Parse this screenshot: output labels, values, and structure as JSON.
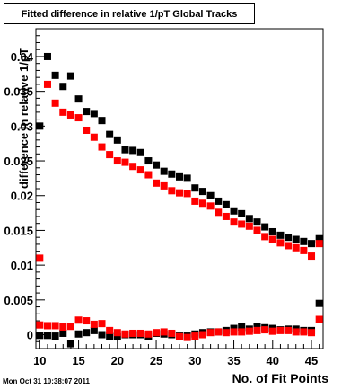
{
  "title": "Fitted difference in relative 1/pT  Global Tracks",
  "timestamp": "Mon Oct 31 10:38:07 2011",
  "chart_data": {
    "type": "scatter",
    "title": "Fitted difference in relative 1/pT  Global Tracks",
    "xlabel": "No. of Fit Points",
    "ylabel": "difference in relative 1/pT",
    "xlim": [
      9.5,
      46.5
    ],
    "ylim": [
      -0.002,
      0.044
    ],
    "x_ticks": [
      10,
      15,
      20,
      25,
      30,
      35,
      40,
      45
    ],
    "x_tick_labels": [
      "10",
      "15",
      "20",
      "25",
      "30",
      "35",
      "40",
      "45"
    ],
    "y_ticks": [
      0,
      0.005,
      0.01,
      0.015,
      0.02,
      0.025,
      0.03,
      0.035,
      0.04
    ],
    "y_tick_labels": [
      "0",
      "0.005",
      "0.01",
      "0.015",
      "0.02",
      "0.025",
      "0.03",
      "0.035",
      "0.04"
    ],
    "grid": false,
    "legend": "none",
    "series": [
      {
        "color": "#000000",
        "x": [
          10,
          11,
          12,
          13,
          14,
          15,
          16,
          17,
          18,
          19,
          20,
          21,
          22,
          23,
          24,
          25,
          26,
          27,
          28,
          29,
          30,
          31,
          32,
          33,
          34,
          35,
          36,
          37,
          38,
          39,
          40,
          41,
          42,
          43,
          44,
          45,
          46
        ],
        "y": [
          0.03,
          0.04,
          0.0373,
          0.0357,
          0.0372,
          0.0339,
          0.0321,
          0.0318,
          0.0308,
          0.0288,
          0.028,
          0.0266,
          0.0265,
          0.0262,
          0.025,
          0.0244,
          0.0235,
          0.0231,
          0.0227,
          0.0225,
          0.0211,
          0.0206,
          0.02,
          0.0192,
          0.0187,
          0.0178,
          0.0174,
          0.0167,
          0.0162,
          0.0155,
          0.0148,
          0.0143,
          0.014,
          0.0137,
          0.0134,
          0.0131,
          0.0138
        ]
      },
      {
        "color": "#ff0000",
        "x": [
          10,
          11,
          12,
          13,
          14,
          15,
          16,
          17,
          18,
          19,
          20,
          21,
          22,
          23,
          24,
          25,
          26,
          27,
          28,
          29,
          30,
          31,
          32,
          33,
          34,
          35,
          36,
          37,
          38,
          39,
          40,
          41,
          42,
          43,
          44,
          45,
          46
        ],
        "y": [
          0.011,
          0.036,
          0.0333,
          0.032,
          0.0316,
          0.0312,
          0.0294,
          0.0284,
          0.027,
          0.0259,
          0.025,
          0.0248,
          0.0242,
          0.0237,
          0.023,
          0.0218,
          0.0214,
          0.0207,
          0.0204,
          0.0203,
          0.0192,
          0.0189,
          0.0185,
          0.0176,
          0.017,
          0.0162,
          0.0159,
          0.0156,
          0.015,
          0.0141,
          0.0137,
          0.0132,
          0.0128,
          0.0125,
          0.0121,
          0.0113,
          0.0131
        ]
      },
      {
        "color": "#000000",
        "x": [
          10,
          11,
          12,
          13,
          14,
          15,
          16,
          17,
          18,
          19,
          20,
          21,
          22,
          23,
          24,
          25,
          26,
          27,
          28,
          29,
          30,
          31,
          32,
          33,
          34,
          35,
          36,
          37,
          38,
          39,
          40,
          41,
          42,
          43,
          44,
          45,
          46
        ],
        "y": [
          -0.0001,
          -0.0001,
          -0.0002,
          0.0002,
          -0.0013,
          0.0001,
          0.0003,
          0.0006,
          0.0,
          -0.0002,
          -0.0003,
          0.0,
          0.0,
          0.0,
          -0.0003,
          0.0002,
          0.0001,
          0.0,
          -0.0002,
          -0.0002,
          0.0001,
          0.0003,
          0.0004,
          0.0004,
          0.0006,
          0.0009,
          0.0011,
          0.0008,
          0.0011,
          0.001,
          0.0009,
          0.0007,
          0.0008,
          0.0008,
          0.0006,
          0.0006,
          0.0045
        ]
      },
      {
        "color": "#ff0000",
        "x": [
          10,
          11,
          12,
          13,
          14,
          15,
          16,
          17,
          18,
          19,
          20,
          21,
          22,
          23,
          24,
          25,
          26,
          27,
          28,
          29,
          30,
          31,
          32,
          33,
          34,
          35,
          36,
          37,
          38,
          39,
          40,
          41,
          42,
          43,
          44,
          45,
          46
        ],
        "y": [
          0.0014,
          0.0013,
          0.0013,
          0.0011,
          0.0012,
          0.0021,
          0.002,
          0.0015,
          0.0016,
          0.0006,
          0.0003,
          0.0001,
          0.0002,
          0.0002,
          0.0001,
          0.0003,
          0.0004,
          0.0002,
          -0.0003,
          -0.0004,
          -0.0002,
          0.0,
          0.0003,
          0.0004,
          0.0003,
          0.0004,
          0.0004,
          0.0005,
          0.0006,
          0.0007,
          0.0005,
          0.0006,
          0.0006,
          0.0004,
          0.0004,
          0.0003,
          0.0022
        ]
      }
    ]
  }
}
